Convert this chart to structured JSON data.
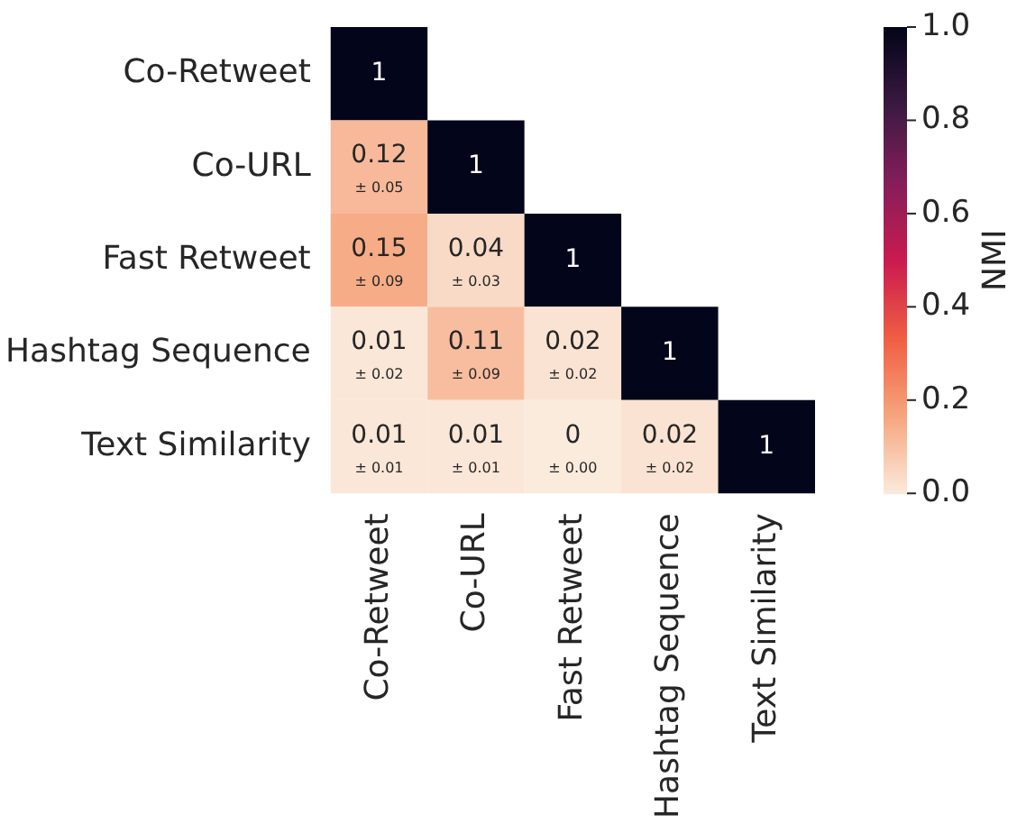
{
  "chart_data": {
    "type": "heatmap",
    "clabel": "NMI",
    "categories": [
      "Co-Retweet",
      "Co-URL",
      "Fast Retweet",
      "Hashtag Sequence",
      "Text Similarity"
    ],
    "y_categories": [
      "Co-Retweet",
      "Co-URL",
      "Fast Retweet",
      "Hashtag Sequence",
      "Text Similarity"
    ],
    "cells": [
      [
        1,
        null,
        null,
        null,
        null
      ],
      [
        0.12,
        1,
        null,
        null,
        null
      ],
      [
        0.15,
        0.04,
        1,
        null,
        null
      ],
      [
        0.01,
        0.11,
        0.02,
        1,
        null
      ],
      [
        0.01,
        0.01,
        0,
        0.02,
        1
      ]
    ],
    "cell_labels": [
      [
        "1",
        null,
        null,
        null,
        null
      ],
      [
        "0.12\n± 0.05",
        "1",
        null,
        null,
        null
      ],
      [
        "0.15\n± 0.09",
        "0.04\n± 0.03",
        "1",
        null,
        null
      ],
      [
        "0.01\n± 0.02",
        "0.11\n± 0.09",
        "0.02\n± 0.02",
        "1",
        null
      ],
      [
        "0.01\n± 0.01",
        "0.01\n± 0.01",
        "0\n± 0.00",
        "0.02\n± 0.02",
        "1"
      ]
    ],
    "clim": [
      0,
      1
    ],
    "cticks": [
      {
        "value": 0,
        "label": "0.0"
      },
      {
        "value": 0.2,
        "label": "0.2"
      },
      {
        "value": 0.4,
        "label": "0.4"
      },
      {
        "value": 0.6,
        "label": "0.6"
      },
      {
        "value": 0.8,
        "label": "0.8"
      },
      {
        "value": 1,
        "label": "1.0"
      }
    ]
  }
}
